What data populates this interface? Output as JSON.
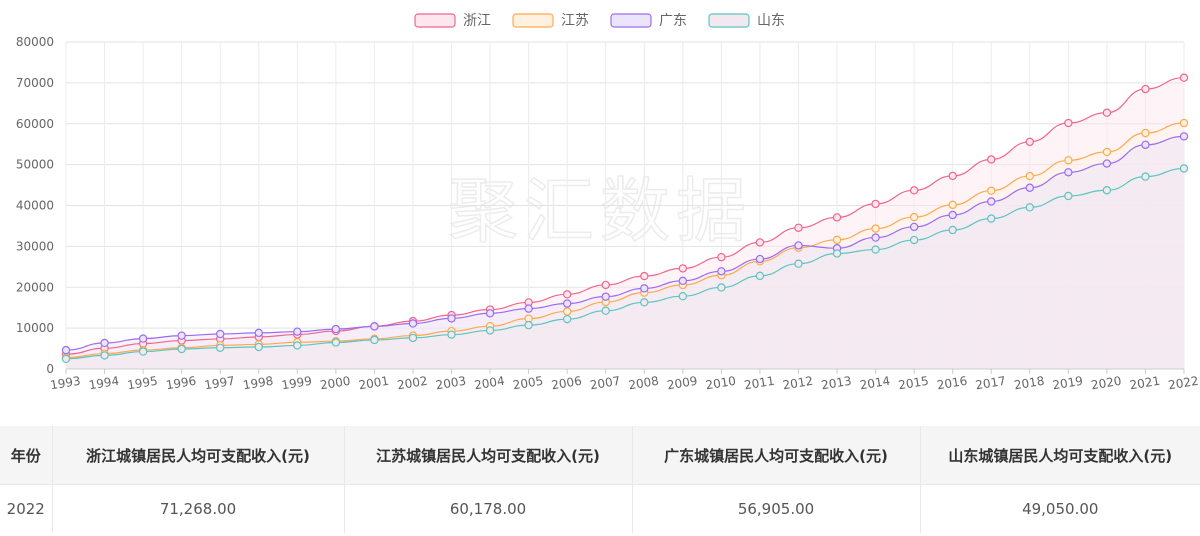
{
  "chart_data": {
    "type": "line",
    "categories": [
      "1993",
      "1994",
      "1995",
      "1996",
      "1997",
      "1998",
      "1999",
      "2000",
      "2001",
      "2002",
      "2003",
      "2004",
      "2005",
      "2006",
      "2007",
      "2008",
      "2009",
      "2010",
      "2011",
      "2012",
      "2013",
      "2014",
      "2015",
      "2016",
      "2017",
      "2018",
      "2019",
      "2020",
      "2021",
      "2022"
    ],
    "ylim": [
      0,
      80000
    ],
    "yticks": [
      "0",
      "10000",
      "20000",
      "30000",
      "40000",
      "50000",
      "60000",
      "70000",
      "80000"
    ],
    "grid": true,
    "legend_position": "top-center",
    "watermark": "聚汇数据",
    "series": [
      {
        "name": "浙江",
        "color": "#f0668a",
        "fill": "#fde6ee",
        "values": [
          3620,
          5070,
          6220,
          6960,
          7360,
          7840,
          8430,
          9280,
          10470,
          11720,
          13180,
          14550,
          16290,
          18270,
          20570,
          22730,
          24610,
          27360,
          30970,
          34550,
          37080,
          40390,
          43710,
          47240,
          51260,
          55570,
          60180,
          62700,
          68490,
          71268
        ]
      },
      {
        "name": "江苏",
        "color": "#ffa94d",
        "fill": "#fff1e0",
        "values": [
          2800,
          3750,
          4630,
          5190,
          5770,
          6020,
          6540,
          6800,
          7380,
          8180,
          9260,
          10480,
          12320,
          14080,
          16380,
          18680,
          20550,
          22940,
          26340,
          29680,
          31590,
          34350,
          37170,
          40150,
          43620,
          47200,
          51060,
          53100,
          57740,
          60178
        ]
      },
      {
        "name": "广东",
        "color": "#9b6cf2",
        "fill": "#ece4fb",
        "values": [
          4630,
          6370,
          7440,
          8160,
          8560,
          8840,
          9130,
          9760,
          10420,
          11140,
          12380,
          13630,
          14770,
          16020,
          17700,
          19730,
          21570,
          23900,
          26900,
          30230,
          29540,
          32150,
          34760,
          37680,
          40980,
          44340,
          48120,
          50260,
          54850,
          56905
        ]
      },
      {
        "name": "山东",
        "color": "#5cc5c0",
        "fill": "#f3e8ef",
        "values": [
          2490,
          3330,
          4260,
          4890,
          5190,
          5380,
          5760,
          6490,
          7100,
          7610,
          8400,
          9440,
          10740,
          12190,
          14260,
          16310,
          17810,
          19950,
          22790,
          25760,
          28260,
          29220,
          31550,
          34010,
          36790,
          39550,
          42330,
          43730,
          47070,
          49050
        ]
      }
    ]
  },
  "table": {
    "headers": [
      "年份",
      "浙江城镇居民人均可支配收入(元)",
      "江苏城镇居民人均可支配收入(元)",
      "广东城镇居民人均可支配收入(元)",
      "山东城镇居民人均可支配收入(元)"
    ],
    "rows": [
      [
        "2022",
        "71,268.00",
        "60,178.00",
        "56,905.00",
        "49,050.00"
      ]
    ]
  }
}
